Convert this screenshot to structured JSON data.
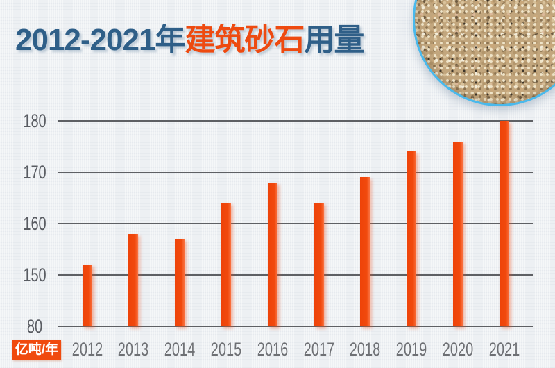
{
  "page": {
    "background": "#edf0f3"
  },
  "title": {
    "part_years": "2012-2021年",
    "part_subject": "建筑砂石",
    "part_usage": "用量",
    "color_blue": "#2f5f88",
    "color_orange": "#ee4a10"
  },
  "image": {
    "description": "sand-gravel-closeup-photo",
    "border_color": "#49b9ec"
  },
  "chart_data": {
    "type": "bar",
    "title": "2012-2021年建筑砂石用量",
    "categories": [
      "2012",
      "2013",
      "2014",
      "2015",
      "2016",
      "2017",
      "2018",
      "2019",
      "2020",
      "2021"
    ],
    "values": [
      152,
      158,
      157,
      164,
      168,
      164,
      169,
      174,
      176,
      180
    ],
    "xlabel": "",
    "ylabel": "亿吨/年",
    "unit_label": "亿吨/年",
    "y_ticks": [
      180,
      170,
      160,
      150,
      80
    ],
    "ylim": [
      80,
      180
    ],
    "axis_break_between": [
      80,
      150
    ],
    "grid": true,
    "legend": "none",
    "bar_color": "#f1490d",
    "grid_color": "#5e6064",
    "unit_badge_bg": "#f04a0e",
    "unit_badge_text_color": "#ffffff"
  }
}
